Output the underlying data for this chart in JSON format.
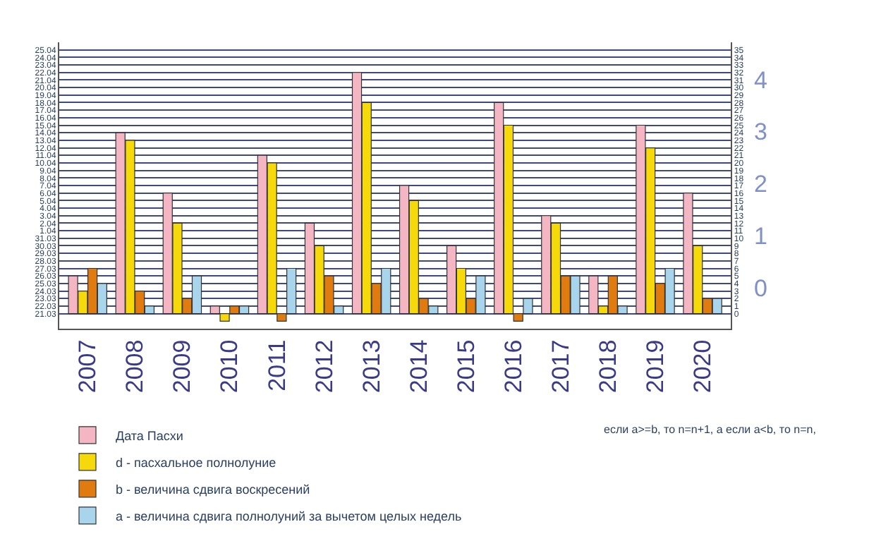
{
  "chart_data": {
    "type": "bar",
    "categories": [
      "2007",
      "2008",
      "2009",
      "2010",
      "2011",
      "2012",
      "2013",
      "2014",
      "2015",
      "2016",
      "2017",
      "2018",
      "2019",
      "2020"
    ],
    "series": [
      {
        "name": "Дата Пасхи",
        "color": "#f4b6c2",
        "values": [
          5,
          24,
          16,
          1,
          21,
          12,
          32,
          17,
          9,
          28,
          13,
          5,
          25,
          16
        ]
      },
      {
        "name": "d - пасхальное полнолуние",
        "color": "#f5d90a",
        "values": [
          3,
          23,
          12,
          -1,
          20,
          9,
          28,
          15,
          6,
          25,
          12,
          1,
          22,
          9
        ]
      },
      {
        "name": "b - величина сдвига воскресений",
        "color": "#e07b10",
        "values": [
          6,
          3,
          2,
          1,
          -1,
          5,
          4,
          2,
          2,
          -1,
          5,
          5,
          4,
          2
        ]
      },
      {
        "name": "a - величина сдвига полнолуний за вычетом целых недель",
        "color": "#a8d4ec",
        "values": [
          4,
          1,
          5,
          1,
          6,
          1,
          6,
          1,
          5,
          2,
          5,
          1,
          6,
          2
        ]
      }
    ],
    "ylim": [
      -2,
      36
    ],
    "yticks": [
      0,
      1,
      2,
      3,
      4,
      5,
      6,
      7,
      8,
      9,
      10,
      11,
      12,
      13,
      14,
      15,
      16,
      17,
      18,
      19,
      20,
      21,
      22,
      23,
      24,
      25,
      26,
      27,
      28,
      29,
      30,
      31,
      32,
      33,
      34,
      35
    ],
    "y2lim": [
      "--03-19",
      "--04-26"
    ],
    "y2ticks": [
      {
        "value": "--03-21",
        "label": "21.03"
      },
      {
        "value": "--03-22",
        "label": "22.03"
      },
      {
        "value": "--03-23",
        "label": "23.03"
      },
      {
        "value": "--03-24",
        "label": "24.03"
      },
      {
        "value": "--03-25",
        "label": "25.03"
      },
      {
        "value": "--03-26",
        "label": "26.03"
      },
      {
        "value": "--03-27",
        "label": "27.03"
      },
      {
        "value": "--03-28",
        "label": "28.03"
      },
      {
        "value": "--03-29",
        "label": "29.03"
      },
      {
        "value": "--03-30",
        "label": "30.03"
      },
      {
        "value": "--03-31",
        "label": "31.03"
      },
      {
        "value": "--04-01",
        "label": "1.04"
      },
      {
        "value": "--04-02",
        "label": "2.04"
      },
      {
        "value": "--04-03",
        "label": "3.04"
      },
      {
        "value": "--04-04",
        "label": "4.04"
      },
      {
        "value": "--04-05",
        "label": "5.04"
      },
      {
        "value": "--04-06",
        "label": "6.04"
      },
      {
        "value": "--04-07",
        "label": "7.04"
      },
      {
        "value": "--04-08",
        "label": "8.04"
      },
      {
        "value": "--04-09",
        "label": "9.04"
      },
      {
        "value": "--04-10",
        "label": "10.04"
      },
      {
        "value": "--04-11",
        "label": "11.04"
      },
      {
        "value": "--04-12",
        "label": "12.04"
      },
      {
        "value": "--04-13",
        "label": "13.04"
      },
      {
        "value": "--04-14",
        "label": "14.04"
      },
      {
        "value": "--04-15",
        "label": "15.04"
      },
      {
        "value": "--04-16",
        "label": "16.04"
      },
      {
        "value": "--04-17",
        "label": "17.04"
      },
      {
        "value": "--04-18",
        "label": "18.04"
      },
      {
        "value": "--04-19",
        "label": "19.04"
      },
      {
        "value": "--04-20",
        "label": "20.04"
      },
      {
        "value": "--04-21",
        "label": "21.04"
      },
      {
        "value": "--04-22",
        "label": "22.04"
      },
      {
        "value": "--04-23",
        "label": "23.04"
      },
      {
        "value": "--04-24",
        "label": "24.04"
      },
      {
        "value": "--04-25",
        "label": "25.04"
      }
    ],
    "y3lim": [
      -0.785714,
      4.714286
    ],
    "y3ticks": [
      0,
      1,
      2,
      3,
      4
    ],
    "grid": "y",
    "legend": "bottom left",
    "annotations": [
      "если a>=b, то n=n+1, а если a<b, то n=n,"
    ]
  }
}
